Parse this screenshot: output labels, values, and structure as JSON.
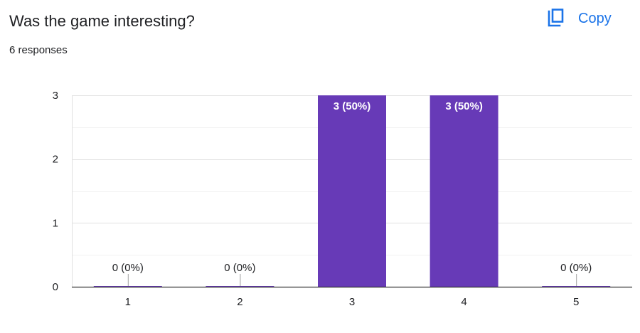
{
  "question": {
    "title": "Was the game interesting?",
    "responses": "6 responses"
  },
  "copy": {
    "label": "Copy",
    "icon": "copy-icon"
  },
  "colors": {
    "bar": "#673ab7",
    "accent": "#1a73e8"
  },
  "chart_data": {
    "type": "bar",
    "categories": [
      "1",
      "2",
      "3",
      "4",
      "5"
    ],
    "values": [
      0,
      0,
      3,
      3,
      0
    ],
    "data_labels": [
      "0 (0%)",
      "0 (0%)",
      "3 (50%)",
      "3 (50%)",
      "0 (0%)"
    ],
    "ylim": [
      0,
      3
    ],
    "yticks": [
      0,
      1,
      2,
      3
    ],
    "xlabel": "",
    "ylabel": "",
    "grid": true
  }
}
